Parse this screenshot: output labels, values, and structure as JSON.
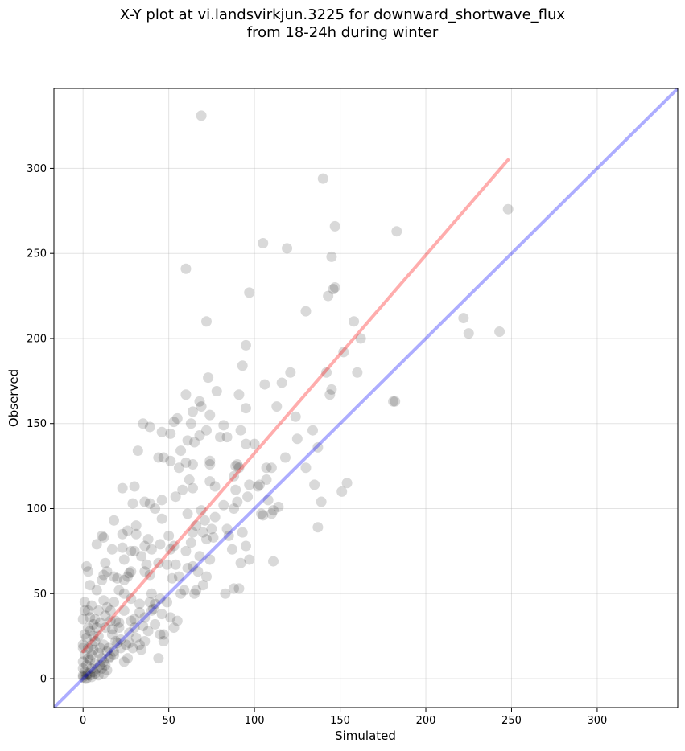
{
  "chart_data": {
    "type": "scatter",
    "title": [
      "X-Y plot at vi.landsvirkjun.3225 for downward_shortwave_flux",
      "from 18-24h during winter"
    ],
    "xlabel": "Simulated",
    "ylabel": "Observed",
    "xlim": [
      -17,
      347
    ],
    "ylim": [
      -17,
      347
    ],
    "xticks": [
      0,
      50,
      100,
      150,
      200,
      250,
      300
    ],
    "yticks": [
      0,
      50,
      100,
      150,
      200,
      250,
      300
    ],
    "grid": true,
    "point_color": "#000000",
    "point_opacity": 0.15,
    "lines": [
      {
        "role": "identity",
        "color": "#0000ff",
        "opacity": 0.32,
        "points": [
          [
            -17,
            -17
          ],
          [
            347,
            347
          ]
        ]
      },
      {
        "role": "fit",
        "color": "#ff0000",
        "opacity": 0.32,
        "points": [
          [
            0,
            16
          ],
          [
            248,
            305
          ]
        ]
      }
    ],
    "points": [
      [
        69,
        331
      ],
      [
        140,
        294
      ],
      [
        248,
        276
      ],
      [
        147,
        266
      ],
      [
        183,
        263
      ],
      [
        105,
        256
      ],
      [
        119,
        253
      ],
      [
        145,
        248
      ],
      [
        60,
        241
      ],
      [
        147,
        230
      ],
      [
        146,
        229
      ],
      [
        97,
        227
      ],
      [
        143,
        225
      ],
      [
        130,
        216
      ],
      [
        222,
        212
      ],
      [
        158,
        210
      ],
      [
        72,
        210
      ],
      [
        225,
        203
      ],
      [
        243,
        204
      ],
      [
        162,
        200
      ],
      [
        95,
        196
      ],
      [
        152,
        192
      ],
      [
        93,
        184
      ],
      [
        160,
        180
      ],
      [
        121,
        180
      ],
      [
        142,
        180
      ],
      [
        73,
        177
      ],
      [
        106,
        173
      ],
      [
        116,
        174
      ],
      [
        145,
        170
      ],
      [
        144,
        167
      ],
      [
        91,
        167
      ],
      [
        78,
        169
      ],
      [
        60,
        167
      ],
      [
        181,
        163
      ],
      [
        68,
        163
      ],
      [
        69,
        160
      ],
      [
        95,
        159
      ],
      [
        113,
        160
      ],
      [
        124,
        154
      ],
      [
        74,
        155
      ],
      [
        63,
        150
      ],
      [
        55,
        153
      ],
      [
        35,
        150
      ],
      [
        53,
        151
      ],
      [
        64,
        157
      ],
      [
        39,
        148
      ],
      [
        72,
        146
      ],
      [
        82,
        149
      ],
      [
        68,
        143
      ],
      [
        84,
        142
      ],
      [
        51,
        144
      ],
      [
        46,
        145
      ],
      [
        92,
        146
      ],
      [
        95,
        138
      ],
      [
        100,
        138
      ],
      [
        65,
        139
      ],
      [
        61,
        140
      ],
      [
        80,
        142
      ],
      [
        125,
        141
      ],
      [
        134,
        146
      ],
      [
        32,
        134
      ],
      [
        57,
        134
      ],
      [
        110,
        124
      ],
      [
        130,
        124
      ],
      [
        107,
        124
      ],
      [
        118,
        130
      ],
      [
        137,
        136
      ],
      [
        88,
        119
      ],
      [
        90,
        126
      ],
      [
        91,
        124
      ],
      [
        64,
        126
      ],
      [
        74,
        128
      ],
      [
        74,
        126
      ],
      [
        56,
        124
      ],
      [
        60,
        127
      ],
      [
        47,
        130
      ],
      [
        51,
        128
      ],
      [
        44,
        130
      ],
      [
        103,
        114
      ],
      [
        107,
        117
      ],
      [
        97,
        114
      ],
      [
        74,
        116
      ],
      [
        62,
        117
      ],
      [
        58,
        111
      ],
      [
        77,
        113
      ],
      [
        64,
        112
      ],
      [
        89,
        111
      ],
      [
        90,
        104
      ],
      [
        96,
        107
      ],
      [
        23,
        112
      ],
      [
        18,
        93
      ],
      [
        30,
        113
      ],
      [
        54,
        107
      ],
      [
        46,
        105
      ],
      [
        61,
        97
      ],
      [
        66,
        90
      ],
      [
        64,
        86
      ],
      [
        69,
        99
      ],
      [
        71,
        93
      ],
      [
        77,
        95
      ],
      [
        82,
        102
      ],
      [
        88,
        100
      ],
      [
        70,
        86
      ],
      [
        76,
        83
      ],
      [
        85,
        84
      ],
      [
        93,
        86
      ],
      [
        105,
        96
      ],
      [
        110,
        97
      ],
      [
        108,
        105
      ],
      [
        111,
        99
      ],
      [
        135,
        114
      ],
      [
        139,
        104
      ],
      [
        151,
        110
      ],
      [
        154,
        115
      ],
      [
        137,
        89
      ],
      [
        36,
        104
      ],
      [
        39,
        103
      ],
      [
        29,
        103
      ],
      [
        42,
        100
      ],
      [
        31,
        90
      ],
      [
        26,
        87
      ],
      [
        31,
        85
      ],
      [
        23,
        85
      ],
      [
        11,
        84
      ],
      [
        12,
        83
      ],
      [
        36,
        78
      ],
      [
        40,
        76
      ],
      [
        28,
        75
      ],
      [
        30,
        75
      ],
      [
        51,
        76
      ],
      [
        53,
        78
      ],
      [
        60,
        75
      ],
      [
        38,
        82
      ],
      [
        45,
        79
      ],
      [
        8,
        79
      ],
      [
        23,
        77
      ],
      [
        17,
        76
      ],
      [
        63,
        80
      ],
      [
        72,
        82
      ],
      [
        75,
        88
      ],
      [
        84,
        88
      ],
      [
        95,
        78
      ],
      [
        87,
        76
      ],
      [
        74,
        70
      ],
      [
        68,
        72
      ],
      [
        64,
        66
      ],
      [
        67,
        63
      ],
      [
        72,
        60
      ],
      [
        61,
        65
      ],
      [
        56,
        60
      ],
      [
        54,
        67
      ],
      [
        49,
        67
      ],
      [
        44,
        68
      ],
      [
        37,
        67
      ],
      [
        36,
        63
      ],
      [
        28,
        63
      ],
      [
        26,
        60
      ],
      [
        24,
        58
      ],
      [
        13,
        68
      ],
      [
        14,
        63
      ],
      [
        20,
        59
      ],
      [
        12,
        61
      ],
      [
        24,
        70
      ],
      [
        34,
        72
      ],
      [
        2,
        66
      ],
      [
        3,
        63
      ],
      [
        4,
        55
      ],
      [
        8,
        52
      ],
      [
        5,
        43
      ],
      [
        1,
        45
      ],
      [
        21,
        52
      ],
      [
        24,
        50
      ],
      [
        28,
        47
      ],
      [
        33,
        44
      ],
      [
        40,
        50
      ],
      [
        42,
        44
      ],
      [
        45,
        47
      ],
      [
        18,
        45
      ],
      [
        14,
        42
      ],
      [
        12,
        46
      ],
      [
        9,
        40
      ],
      [
        7,
        35
      ],
      [
        10,
        33
      ],
      [
        13,
        37
      ],
      [
        16,
        40
      ],
      [
        24,
        40
      ],
      [
        30,
        35
      ],
      [
        35,
        31
      ],
      [
        38,
        28
      ],
      [
        42,
        32
      ],
      [
        46,
        38
      ],
      [
        51,
        36
      ],
      [
        55,
        34
      ],
      [
        53,
        30
      ],
      [
        47,
        22
      ],
      [
        44,
        12
      ],
      [
        33,
        20
      ],
      [
        29,
        18
      ],
      [
        26,
        12
      ],
      [
        24,
        10
      ],
      [
        19,
        22
      ],
      [
        22,
        18
      ],
      [
        18,
        14
      ],
      [
        15,
        12
      ],
      [
        12,
        20
      ],
      [
        9,
        25
      ],
      [
        7,
        22
      ],
      [
        4,
        28
      ],
      [
        2,
        24
      ],
      [
        0,
        20
      ],
      [
        1,
        26
      ],
      [
        0,
        18
      ],
      [
        1,
        14
      ],
      [
        3,
        12
      ],
      [
        0,
        10
      ],
      [
        2,
        8
      ],
      [
        0,
        6
      ],
      [
        1,
        4
      ],
      [
        0,
        2
      ],
      [
        2,
        0
      ],
      [
        4,
        2
      ],
      [
        5,
        6
      ],
      [
        6,
        4
      ],
      [
        7,
        9
      ],
      [
        8,
        6
      ],
      [
        10,
        8
      ],
      [
        11,
        12
      ],
      [
        12,
        10
      ],
      [
        14,
        16
      ],
      [
        15,
        18
      ],
      [
        16,
        13
      ],
      [
        18,
        16
      ],
      [
        5,
        14
      ],
      [
        6,
        17
      ],
      [
        3,
        18
      ],
      [
        4,
        11
      ],
      [
        9,
        15
      ],
      [
        10,
        18
      ],
      [
        12,
        3
      ],
      [
        14,
        5
      ],
      [
        1,
        0
      ],
      [
        0,
        1
      ],
      [
        3,
        3
      ],
      [
        2,
        2
      ],
      [
        5,
        1
      ],
      [
        7,
        3
      ],
      [
        9,
        2
      ],
      [
        11,
        6
      ],
      [
        13,
        8
      ],
      [
        20,
        21
      ],
      [
        22,
        23
      ],
      [
        25,
        20
      ],
      [
        8,
        30
      ],
      [
        6,
        32
      ],
      [
        3,
        40
      ],
      [
        13,
        30
      ],
      [
        19,
        34
      ],
      [
        17,
        29
      ],
      [
        21,
        33
      ],
      [
        27,
        27
      ],
      [
        30,
        30
      ],
      [
        36,
        36
      ],
      [
        40,
        40
      ],
      [
        83,
        50
      ],
      [
        88,
        53
      ],
      [
        91,
        53
      ],
      [
        92,
        68
      ],
      [
        97,
        70
      ],
      [
        104,
        97
      ],
      [
        111,
        69
      ],
      [
        182,
        163
      ],
      [
        114,
        101
      ],
      [
        89,
        125
      ],
      [
        102,
        113
      ],
      [
        65,
        50
      ],
      [
        59,
        52
      ],
      [
        66,
        52
      ],
      [
        57,
        50
      ],
      [
        70,
        55
      ],
      [
        52,
        59
      ],
      [
        50,
        84
      ],
      [
        46,
        94
      ],
      [
        18,
        60
      ],
      [
        27,
        62
      ],
      [
        39,
        61
      ],
      [
        11,
        58
      ],
      [
        49,
        45
      ],
      [
        34,
        17
      ],
      [
        45,
        26
      ],
      [
        41,
        41
      ],
      [
        33,
        39
      ],
      [
        28,
        34
      ],
      [
        17,
        26
      ],
      [
        16,
        34
      ],
      [
        21,
        30
      ],
      [
        27,
        21
      ],
      [
        31,
        24
      ],
      [
        36,
        22
      ],
      [
        47,
        26
      ],
      [
        39,
        45
      ],
      [
        5,
        20
      ],
      [
        6,
        25
      ],
      [
        3,
        30
      ],
      [
        0,
        35
      ],
      [
        1,
        40
      ],
      [
        4,
        36
      ]
    ]
  }
}
